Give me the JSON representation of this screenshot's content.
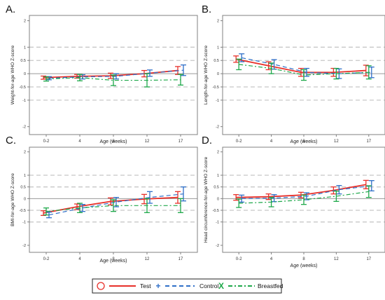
{
  "colors": {
    "test": "#e8302a",
    "control": "#2f6fc8",
    "breastfed": "#1ea84a",
    "axis": "#808080",
    "refline": "#c8c8c8",
    "zero": "#999999"
  },
  "legend": {
    "items": [
      {
        "key": "test",
        "marker": "○",
        "label": "Test"
      },
      {
        "key": "control",
        "marker": "+",
        "label": "Control"
      },
      {
        "key": "breastfed",
        "marker": "X",
        "label": "Breastfed"
      }
    ]
  },
  "chart_data": [
    {
      "panel": "A.",
      "type": "line",
      "ylabel": "Weight-for-age WHO Z-score",
      "xlabel": "Age (weeks)",
      "categories": [
        "0-2",
        "4",
        "8",
        "12",
        "17"
      ],
      "yticks": [
        "-2",
        "-1",
        "-0.5",
        "0",
        "0.5",
        "1",
        "2"
      ],
      "ylim": [
        -2.3,
        2.2
      ],
      "reference_lines": [
        1,
        0.5,
        -0.5,
        -1
      ],
      "series": [
        {
          "name": "Test",
          "key": "test",
          "values": [
            -0.15,
            -0.1,
            -0.08,
            0.0,
            0.12
          ],
          "err": [
            0.06,
            0.07,
            0.1,
            0.12,
            0.15
          ]
        },
        {
          "name": "Control",
          "key": "control",
          "values": [
            -0.17,
            -0.12,
            -0.1,
            0.02,
            0.13
          ],
          "err": [
            0.06,
            0.08,
            0.1,
            0.12,
            0.2
          ]
        },
        {
          "name": "Breastfed",
          "key": "breastfed",
          "values": [
            -0.2,
            -0.15,
            -0.25,
            -0.25,
            -0.23
          ],
          "err": [
            0.08,
            0.12,
            0.2,
            0.25,
            0.2
          ]
        }
      ]
    },
    {
      "panel": "B.",
      "type": "line",
      "ylabel": "Length-for-age WHO Z-score",
      "xlabel": "Age (weeks)",
      "categories": [
        "0-2",
        "4",
        "8",
        "12",
        "17"
      ],
      "yticks": [
        "-2",
        "-1",
        "-0.5",
        "0",
        "0.5",
        "1",
        "2"
      ],
      "ylim": [
        -2.3,
        2.2
      ],
      "reference_lines": [
        1,
        0.5,
        -0.5,
        -1
      ],
      "series": [
        {
          "name": "Test",
          "key": "test",
          "values": [
            0.55,
            0.3,
            0.05,
            0.05,
            0.12
          ],
          "err": [
            0.12,
            0.15,
            0.15,
            0.15,
            0.2
          ]
        },
        {
          "name": "Control",
          "key": "control",
          "values": [
            0.6,
            0.35,
            0.05,
            0.0,
            0.05
          ],
          "err": [
            0.15,
            0.18,
            0.15,
            0.18,
            0.2
          ]
        },
        {
          "name": "Breastfed",
          "key": "breastfed",
          "values": [
            0.35,
            0.2,
            -0.05,
            0.0,
            0.05
          ],
          "err": [
            0.2,
            0.2,
            0.2,
            0.2,
            0.25
          ]
        }
      ]
    },
    {
      "panel": "C.",
      "type": "line",
      "ylabel": "BMI-for-age WHO Z-score",
      "xlabel": "Age (weeks)",
      "categories": [
        "0-2",
        "4",
        "8",
        "12",
        "17"
      ],
      "yticks": [
        "-2",
        "-1",
        "-0.5",
        "0",
        "0.5",
        "1",
        "2"
      ],
      "ylim": [
        -2.3,
        2.2
      ],
      "reference_lines": [
        1,
        0.5,
        -0.5,
        -1
      ],
      "series": [
        {
          "name": "Test",
          "key": "test",
          "values": [
            -0.62,
            -0.35,
            -0.12,
            -0.02,
            0.05
          ],
          "err": [
            0.1,
            0.12,
            0.15,
            0.2,
            0.25
          ]
        },
        {
          "name": "Control",
          "key": "control",
          "values": [
            -0.7,
            -0.4,
            -0.15,
            0.05,
            0.2
          ],
          "err": [
            0.12,
            0.15,
            0.2,
            0.25,
            0.3
          ]
        },
        {
          "name": "Breastfed",
          "key": "breastfed",
          "values": [
            -0.55,
            -0.4,
            -0.3,
            -0.3,
            -0.3
          ],
          "err": [
            0.15,
            0.2,
            0.25,
            0.3,
            0.3
          ]
        }
      ]
    },
    {
      "panel": "D.",
      "type": "line",
      "ylabel": "Head circumference-for-age WHO Z-score",
      "xlabel": "Age (weeks)",
      "categories": [
        "0-2",
        "4",
        "8",
        "12",
        "17"
      ],
      "yticks": [
        "-2",
        "-1",
        "-0.5",
        "0",
        "0.5",
        "1",
        "2"
      ],
      "ylim": [
        -2.3,
        2.2
      ],
      "reference_lines": [
        1,
        0.5,
        -0.5,
        -1
      ],
      "series": [
        {
          "name": "Test",
          "key": "test",
          "values": [
            0.05,
            0.08,
            0.15,
            0.35,
            0.6
          ],
          "err": [
            0.12,
            0.12,
            0.12,
            0.15,
            0.18
          ]
        },
        {
          "name": "Control",
          "key": "control",
          "values": [
            0.0,
            0.02,
            0.1,
            0.38,
            0.55
          ],
          "err": [
            0.15,
            0.15,
            0.15,
            0.18,
            0.22
          ]
        },
        {
          "name": "Breastfed",
          "key": "breastfed",
          "values": [
            -0.2,
            -0.15,
            -0.05,
            0.1,
            0.3
          ],
          "err": [
            0.18,
            0.2,
            0.2,
            0.22,
            0.25
          ]
        }
      ]
    }
  ]
}
